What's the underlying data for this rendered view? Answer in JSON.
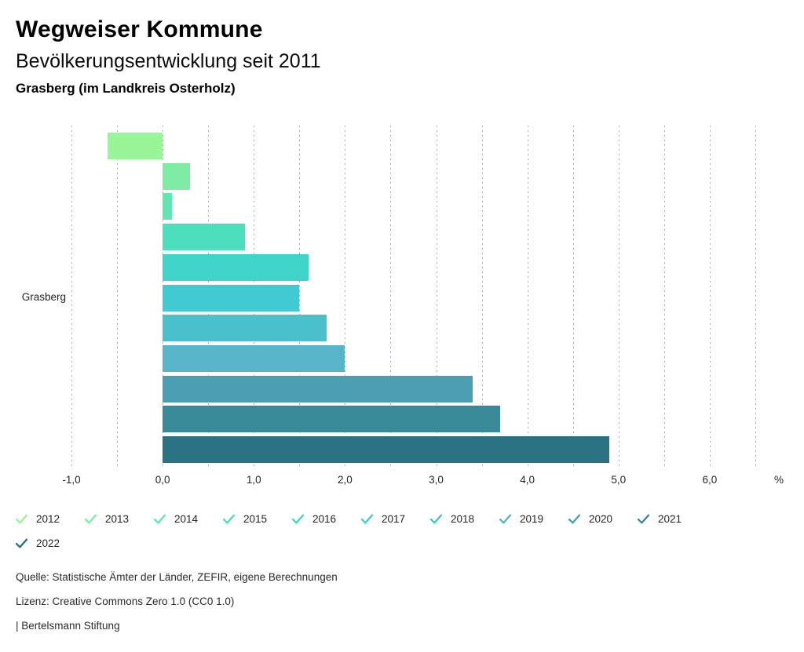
{
  "header": {
    "title": "Wegweiser Kommune",
    "subtitle": "Bevölkerungsentwicklung seit 2011",
    "location": "Grasberg (im Landkreis Osterholz)"
  },
  "chart_data": {
    "type": "bar",
    "orientation": "horizontal",
    "title": "Bevölkerungsentwicklung seit 2011",
    "group_label": "Grasberg",
    "unit": "%",
    "categories": [
      "2012",
      "2013",
      "2014",
      "2015",
      "2016",
      "2017",
      "2018",
      "2019",
      "2020",
      "2021",
      "2022"
    ],
    "values": [
      -0.6,
      0.3,
      0.1,
      0.9,
      1.6,
      1.5,
      1.8,
      2.0,
      3.4,
      3.7,
      4.9
    ],
    "colors": [
      "#98f698",
      "#7deda4",
      "#61e7b1",
      "#4cdfbe",
      "#3ed4c7",
      "#41cad1",
      "#4ac0cd",
      "#58b4c9",
      "#4a9fb2",
      "#398a99",
      "#2a7284"
    ],
    "xlim": [
      -1.0,
      6.5
    ],
    "grid_step": 0.5,
    "grid": "dashed-vertical",
    "x_tick_values": [
      -1,
      0,
      1,
      2,
      3,
      4,
      5,
      6
    ],
    "x_tick_labels": [
      "-1,0",
      "0,0",
      "1,0",
      "2,0",
      "3,0",
      "4,0",
      "5,0",
      "6,0"
    ],
    "legend_position": "bottom"
  },
  "footer": {
    "source": "Quelle: Statistische Ämter der Länder, ZEFIR, eigene Berechnungen",
    "license": "Lizenz: Creative Commons Zero 1.0 (CC0 1.0)",
    "attribution": "| Bertelsmann Stiftung"
  }
}
